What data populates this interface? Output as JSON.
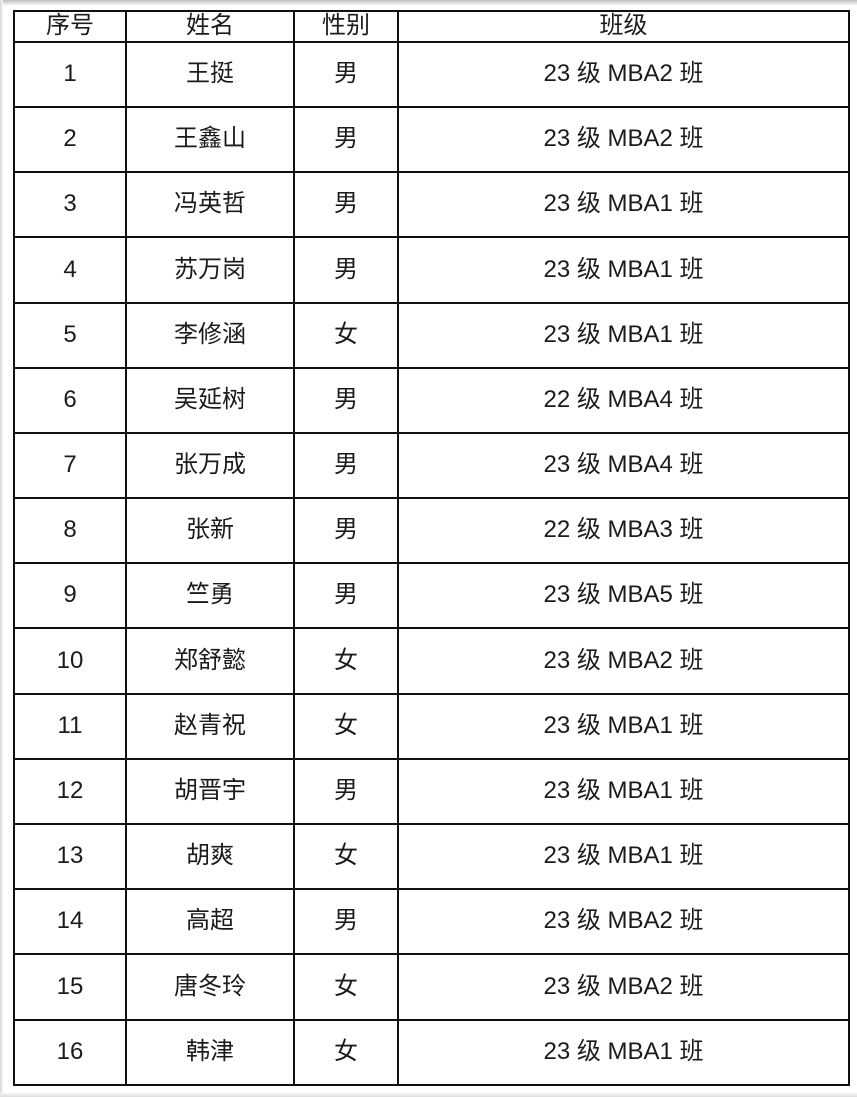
{
  "table": {
    "columns": [
      "序号",
      "姓名",
      "性别",
      "班级"
    ],
    "rows": [
      {
        "no": "1",
        "name": "王挺",
        "gender": "男",
        "class_name": "23 级 MBA2 班"
      },
      {
        "no": "2",
        "name": "王鑫山",
        "gender": "男",
        "class_name": "23 级 MBA2 班"
      },
      {
        "no": "3",
        "name": "冯英哲",
        "gender": "男",
        "class_name": "23 级 MBA1 班"
      },
      {
        "no": "4",
        "name": "苏万岗",
        "gender": "男",
        "class_name": "23 级 MBA1 班"
      },
      {
        "no": "5",
        "name": "李修涵",
        "gender": "女",
        "class_name": "23 级 MBA1 班"
      },
      {
        "no": "6",
        "name": "吴延树",
        "gender": "男",
        "class_name": "22 级 MBA4 班"
      },
      {
        "no": "7",
        "name": "张万成",
        "gender": "男",
        "class_name": "23 级 MBA4 班"
      },
      {
        "no": "8",
        "name": "张新",
        "gender": "男",
        "class_name": "22 级 MBA3 班"
      },
      {
        "no": "9",
        "name": "竺勇",
        "gender": "男",
        "class_name": "23 级 MBA5 班"
      },
      {
        "no": "10",
        "name": "郑舒懿",
        "gender": "女",
        "class_name": "23 级 MBA2 班"
      },
      {
        "no": "11",
        "name": "赵青祝",
        "gender": "女",
        "class_name": "23 级 MBA1 班"
      },
      {
        "no": "12",
        "name": "胡晋宇",
        "gender": "男",
        "class_name": "23 级 MBA1 班"
      },
      {
        "no": "13",
        "name": "胡爽",
        "gender": "女",
        "class_name": "23 级 MBA1 班"
      },
      {
        "no": "14",
        "name": "高超",
        "gender": "男",
        "class_name": "23 级 MBA2 班"
      },
      {
        "no": "15",
        "name": "唐冬玲",
        "gender": "女",
        "class_name": "23 级 MBA2 班"
      },
      {
        "no": "16",
        "name": "韩津",
        "gender": "女",
        "class_name": "23 级 MBA1 班"
      }
    ],
    "text_color": "#1b1b1b",
    "border_color": "#111111"
  }
}
